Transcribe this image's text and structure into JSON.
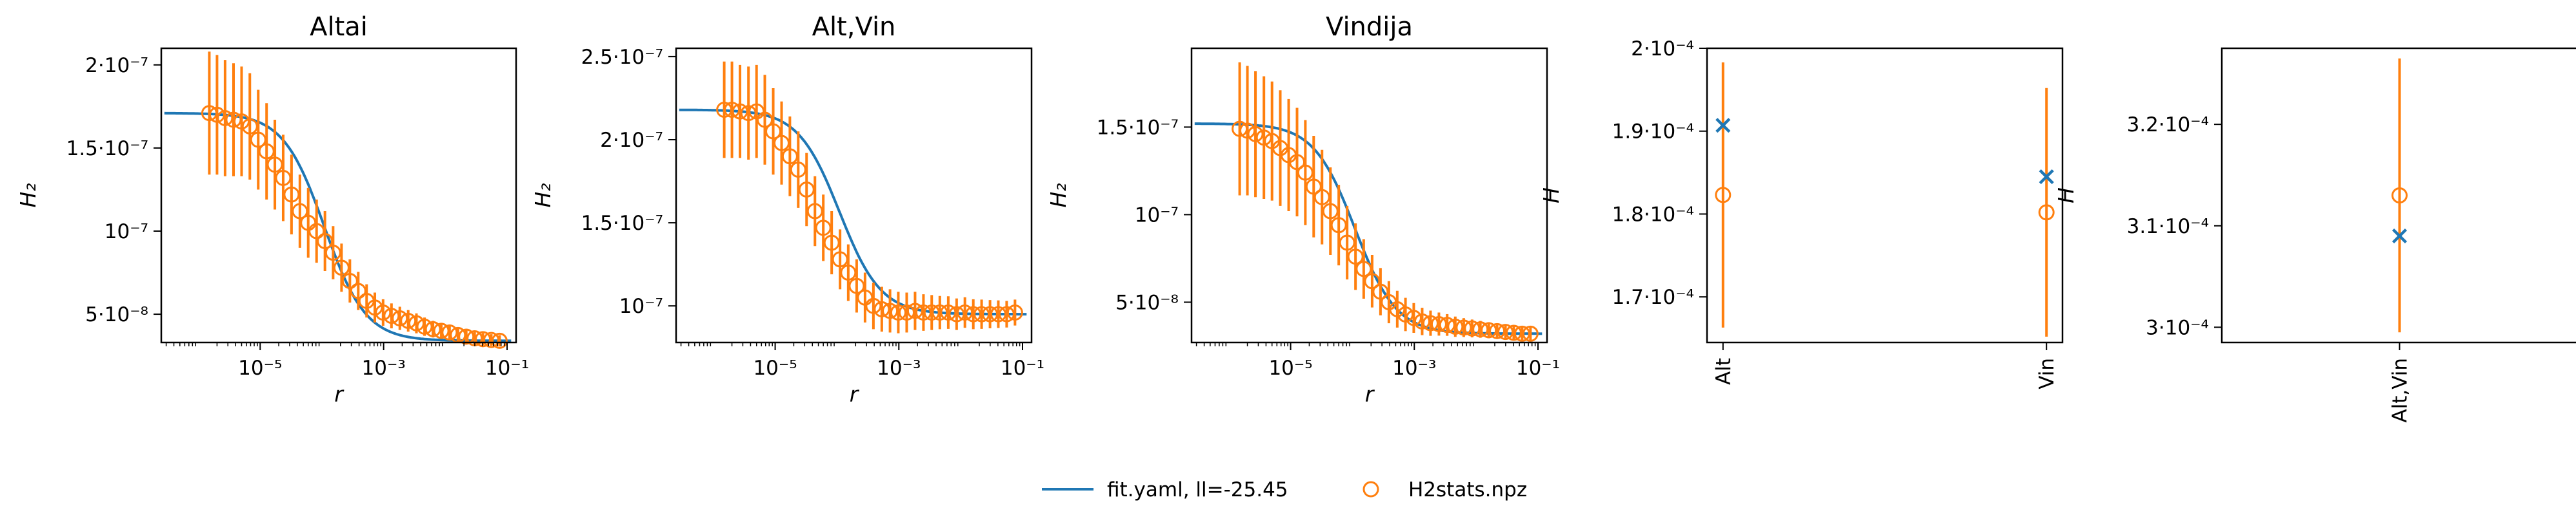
{
  "colors": {
    "model": "#1f77b4",
    "data": "#ff7f0e",
    "frame": "#000000"
  },
  "legend": {
    "placement": "bottom-center",
    "model_label": "fit.yaml, ll=-25.45",
    "data_label": "H2stats.npz"
  },
  "chart_data": [
    {
      "type": "line",
      "title": "Altai",
      "xlabel": "r",
      "ylabel": "H₂",
      "xscale": "log",
      "ylim": [
        3.3e-08,
        2.1e-07
      ],
      "xlim": [
        2.5e-07,
        0.14
      ],
      "yticks": [
        5e-08,
        1e-07,
        1.5e-07,
        2e-07
      ],
      "ytick_labels": [
        "5·10⁻⁸",
        "10⁻⁷",
        "1.5·10⁻⁷",
        "2·10⁻⁷"
      ],
      "xticks": [
        1e-05,
        0.001,
        0.1
      ],
      "xtick_labels": [
        "10⁻⁵",
        "10⁻³",
        "10⁻¹"
      ],
      "upper": 1.71e-07,
      "lower": 3.4e-08,
      "mid": 0.00011,
      "slope": 1.3,
      "r": [
        1.5e-06,
        2e-06,
        2.7e-06,
        3.7e-06,
        5e-06,
        6.8e-06,
        9.3e-06,
        1.27e-05,
        1.73e-05,
        2.36e-05,
        3.22e-05,
        4.4e-05,
        6e-05,
        8.2e-05,
        0.000112,
        0.000152,
        0.000208,
        0.000284,
        0.000388,
        0.00053,
        0.00072,
        0.00098,
        0.00134,
        0.00183,
        0.0025,
        0.0034,
        0.0046,
        0.0063,
        0.0086,
        0.0117,
        0.016,
        0.0218,
        0.0298,
        0.0406,
        0.0554,
        0.0756
      ],
      "h2": [
        1.71e-07,
        1.7e-07,
        1.68e-07,
        1.67e-07,
        1.66e-07,
        1.63e-07,
        1.55e-07,
        1.48e-07,
        1.4e-07,
        1.32e-07,
        1.22e-07,
        1.12e-07,
        1.05e-07,
        1e-07,
        9.4e-08,
        8.7e-08,
        7.8e-08,
        7e-08,
        6.4e-08,
        5.8e-08,
        5.4e-08,
        5.1e-08,
        4.9e-08,
        4.75e-08,
        4.6e-08,
        4.45e-08,
        4.25e-08,
        4.1e-08,
        4e-08,
        3.9e-08,
        3.75e-08,
        3.65e-08,
        3.55e-08,
        3.5e-08,
        3.45e-08,
        3.4e-08
      ],
      "err": [
        3.7e-08,
        3.6e-08,
        3.5e-08,
        3.4e-08,
        3.3e-08,
        3.2e-08,
        3e-08,
        2.9e-08,
        2.7e-08,
        2.6e-08,
        2.4e-08,
        2.2e-08,
        2.1e-08,
        1.9e-08,
        1.8e-08,
        1.6e-08,
        1.45e-08,
        1.3e-08,
        1.15e-08,
        1e-08,
        9e-09,
        8e-09,
        7.5e-09,
        7e-09,
        6.5e-09,
        6e-09,
        5.5e-09,
        5e-09,
        4.8e-09,
        4.5e-09,
        4.2e-09,
        4e-09,
        3.8e-09,
        3.6e-09,
        3.5e-09,
        3.4e-09
      ]
    },
    {
      "type": "line",
      "title": "Alt,Vin",
      "xlabel": "r",
      "ylabel": "H₂",
      "xscale": "log",
      "ylim": [
        7.8e-08,
        2.55e-07
      ],
      "xlim": [
        2.5e-07,
        0.14
      ],
      "yticks": [
        1e-07,
        1.5e-07,
        2e-07,
        2.5e-07
      ],
      "ytick_labels": [
        "10⁻⁷",
        "1.5·10⁻⁷",
        "2·10⁻⁷",
        "2.5·10⁻⁷"
      ],
      "xticks": [
        1e-05,
        0.001,
        0.1
      ],
      "xtick_labels": [
        "10⁻⁵",
        "10⁻³",
        "10⁻¹"
      ],
      "upper": 2.18e-07,
      "lower": 9.5e-08,
      "mid": 0.00011,
      "slope": 1.3,
      "r": [
        1.5e-06,
        2e-06,
        2.7e-06,
        3.7e-06,
        5e-06,
        6.8e-06,
        9.3e-06,
        1.27e-05,
        1.73e-05,
        2.36e-05,
        3.22e-05,
        4.4e-05,
        6e-05,
        8.2e-05,
        0.000112,
        0.000152,
        0.000208,
        0.000284,
        0.000388,
        0.00053,
        0.00072,
        0.00098,
        0.00134,
        0.00183,
        0.0025,
        0.0034,
        0.0046,
        0.0063,
        0.0086,
        0.0117,
        0.016,
        0.0218,
        0.0298,
        0.0406,
        0.0554,
        0.0756
      ],
      "h2": [
        2.18e-07,
        2.18e-07,
        2.17e-07,
        2.16e-07,
        2.17e-07,
        2.12e-07,
        2.05e-07,
        1.98e-07,
        1.9e-07,
        1.82e-07,
        1.7e-07,
        1.57e-07,
        1.47e-07,
        1.38e-07,
        1.28e-07,
        1.2e-07,
        1.12e-07,
        1.05e-07,
        1e-07,
        9.8e-08,
        9.7e-08,
        9.6e-08,
        9.6e-08,
        9.7e-08,
        9.6e-08,
        9.6e-08,
        9.6e-08,
        9.6e-08,
        9.5e-08,
        9.6e-08,
        9.5e-08,
        9.5e-08,
        9.5e-08,
        9.5e-08,
        9.5e-08,
        9.6e-08
      ],
      "err": [
        2.9e-08,
        2.9e-08,
        2.8e-08,
        2.8e-08,
        2.8e-08,
        2.7e-08,
        2.6e-08,
        2.5e-08,
        2.4e-08,
        2.3e-08,
        2.2e-08,
        2.1e-08,
        2e-08,
        1.9e-08,
        1.8e-08,
        1.7e-08,
        1.6e-08,
        1.5e-08,
        1.4e-08,
        1.35e-08,
        1.3e-08,
        1.25e-08,
        1.2e-08,
        1.15e-08,
        1.1e-08,
        1.05e-08,
        1e-08,
        9.8e-09,
        9.5e-09,
        9.2e-09,
        9e-09,
        8.8e-09,
        8.5e-09,
        8.3e-09,
        8e-09,
        7.8e-09
      ]
    },
    {
      "type": "line",
      "title": "Vindija",
      "xlabel": "r",
      "ylabel": "H₂",
      "xscale": "log",
      "ylim": [
        2.7e-08,
        1.95e-07
      ],
      "xlim": [
        2.5e-07,
        0.14
      ],
      "yticks": [
        5e-08,
        1e-07,
        1.5e-07
      ],
      "ytick_labels": [
        "5·10⁻⁸",
        "10⁻⁷",
        "1.5·10⁻⁷"
      ],
      "xticks": [
        1e-05,
        0.001,
        0.1
      ],
      "xtick_labels": [
        "10⁻⁵",
        "10⁻³",
        "10⁻¹"
      ],
      "upper": 1.52e-07,
      "lower": 3.2e-08,
      "mid": 0.00011,
      "slope": 1.3,
      "r": [
        1.5e-06,
        2e-06,
        2.7e-06,
        3.7e-06,
        5e-06,
        6.8e-06,
        9.3e-06,
        1.27e-05,
        1.73e-05,
        2.36e-05,
        3.22e-05,
        4.4e-05,
        6e-05,
        8.2e-05,
        0.000112,
        0.000152,
        0.000208,
        0.000284,
        0.000388,
        0.00053,
        0.00072,
        0.00098,
        0.00134,
        0.00183,
        0.0025,
        0.0034,
        0.0046,
        0.0063,
        0.0086,
        0.0117,
        0.016,
        0.0218,
        0.0298,
        0.0406,
        0.0554,
        0.0756
      ],
      "h2": [
        1.49e-07,
        1.48e-07,
        1.46e-07,
        1.44e-07,
        1.42e-07,
        1.38e-07,
        1.34e-07,
        1.3e-07,
        1.24e-07,
        1.16e-07,
        1.1e-07,
        1.02e-07,
        9.4e-08,
        8.4e-08,
        7.6e-08,
        6.9e-08,
        6.2e-08,
        5.6e-08,
        5e-08,
        4.6e-08,
        4.3e-08,
        4.1e-08,
        3.9e-08,
        3.8e-08,
        3.75e-08,
        3.7e-08,
        3.6e-08,
        3.55e-08,
        3.5e-08,
        3.45e-08,
        3.4e-08,
        3.35e-08,
        3.3e-08,
        3.25e-08,
        3.2e-08,
        3.2e-08
      ],
      "err": [
        3.8e-08,
        3.7e-08,
        3.6e-08,
        3.5e-08,
        3.4e-08,
        3.3e-08,
        3.2e-08,
        3.1e-08,
        3e-08,
        2.9e-08,
        2.7e-08,
        2.5e-08,
        2.3e-08,
        2.1e-08,
        1.9e-08,
        1.7e-08,
        1.5e-08,
        1.35e-08,
        1.2e-08,
        1.05e-08,
        9.5e-09,
        8.5e-09,
        7.8e-09,
        7.2e-09,
        6.6e-09,
        6.2e-09,
        5.8e-09,
        5.4e-09,
        5.1e-09,
        4.8e-09,
        4.6e-09,
        4.4e-09,
        4.2e-09,
        4e-09,
        3.8e-09,
        3.6e-09
      ]
    },
    {
      "type": "scatter",
      "title": "",
      "xlabel": "",
      "ylabel": "H",
      "ylim": [
        0.0001645,
        0.0002
      ],
      "yticks": [
        0.00017,
        0.00018,
        0.00019,
        0.0002
      ],
      "ytick_labels": [
        "1.7·10⁻⁴",
        "1.8·10⁻⁴",
        "1.9·10⁻⁴",
        "2·10⁻⁴"
      ],
      "categories": [
        "Alt",
        "Vin"
      ],
      "model": [
        0.0001907,
        0.0001845
      ],
      "data": [
        0.0001823,
        0.0001802
      ],
      "err": [
        1.6e-05,
        1.5e-05
      ]
    },
    {
      "type": "scatter",
      "title": "",
      "xlabel": "",
      "ylabel": "H",
      "ylim": [
        0.0002985,
        0.0003275
      ],
      "yticks": [
        0.0003,
        0.00031,
        0.00032
      ],
      "ytick_labels": [
        "3·10⁻⁴",
        "3.1·10⁻⁴",
        "3.2·10⁻⁴"
      ],
      "categories": [
        "Alt,Vin"
      ],
      "model": [
        0.000309
      ],
      "data": [
        0.000313
      ],
      "err": [
        1.35e-05
      ]
    }
  ]
}
